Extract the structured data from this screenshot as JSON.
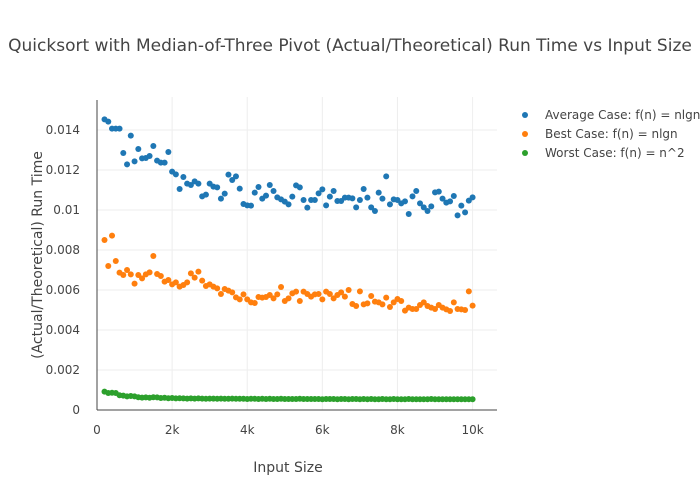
{
  "chart_data": {
    "type": "scatter",
    "title": "Quicksort with Median-of-Three Pivot (Actual/Theoretical) Run Time vs Input Size",
    "xlabel": "Input Size",
    "ylabel": "(Actual/Theoretical) Run Time",
    "xlim": [
      0,
      10650
    ],
    "ylim": [
      0,
      0.01565
    ],
    "x_start": 200,
    "x_step": 100,
    "x_ticks": [
      0,
      2000,
      4000,
      6000,
      8000,
      10000
    ],
    "x_tick_labels": [
      "0",
      "2k",
      "4k",
      "6k",
      "8k",
      "10k"
    ],
    "y_ticks": [
      0,
      0.002,
      0.004,
      0.006,
      0.008,
      0.01,
      0.012,
      0.014
    ],
    "y_tick_labels": [
      "0",
      "0.002",
      "0.004",
      "0.006",
      "0.008",
      "0.01",
      "0.012",
      "0.014"
    ],
    "grid": true,
    "legend_position": "top-right",
    "series": [
      {
        "name": "Average Case: f(n) = nlgn",
        "color": "#1f77b4",
        "values": [
          0.01453,
          0.01442,
          0.01407,
          0.01407,
          0.01407,
          0.01285,
          0.01228,
          0.01372,
          0.01243,
          0.01305,
          0.01258,
          0.0126,
          0.0127,
          0.0132,
          0.01247,
          0.01237,
          0.01237,
          0.0129,
          0.01192,
          0.01178,
          0.01105,
          0.01165,
          0.01132,
          0.01125,
          0.01143,
          0.01132,
          0.01068,
          0.01077,
          0.01132,
          0.01117,
          0.01113,
          0.01057,
          0.01082,
          0.01177,
          0.0115,
          0.01168,
          0.01107,
          0.0103,
          0.01023,
          0.01022,
          0.01087,
          0.01115,
          0.01057,
          0.01072,
          0.01125,
          0.01095,
          0.01063,
          0.01053,
          0.01042,
          0.01028,
          0.01067,
          0.01123,
          0.01113,
          0.0105,
          0.01012,
          0.0105,
          0.0105,
          0.01083,
          0.01103,
          0.01023,
          0.01067,
          0.01095,
          0.01045,
          0.01045,
          0.01062,
          0.01062,
          0.01058,
          0.01013,
          0.0105,
          0.01105,
          0.01062,
          0.01013,
          0.00995,
          0.01087,
          0.01057,
          0.01168,
          0.01028,
          0.01053,
          0.0105,
          0.01033,
          0.01043,
          0.0098,
          0.01068,
          0.01095,
          0.01033,
          0.01013,
          0.00995,
          0.01018,
          0.01088,
          0.01092,
          0.01057,
          0.01037,
          0.01043,
          0.0107,
          0.00973,
          0.01022,
          0.00988,
          0.01047,
          0.01063
        ]
      },
      {
        "name": "Best Case: f(n) = nlgn",
        "color": "#ff7f0e",
        "values": [
          0.0085,
          0.0072,
          0.00872,
          0.00745,
          0.00687,
          0.00675,
          0.007,
          0.00678,
          0.00632,
          0.00675,
          0.00658,
          0.00678,
          0.00688,
          0.0077,
          0.0068,
          0.0067,
          0.00642,
          0.0065,
          0.00628,
          0.00638,
          0.00617,
          0.00625,
          0.00638,
          0.00683,
          0.00662,
          0.00692,
          0.00647,
          0.0062,
          0.00628,
          0.00617,
          0.00608,
          0.0058,
          0.00605,
          0.00597,
          0.00588,
          0.00563,
          0.00553,
          0.00578,
          0.00553,
          0.00538,
          0.00535,
          0.00565,
          0.00562,
          0.00565,
          0.00575,
          0.00558,
          0.00578,
          0.00615,
          0.00545,
          0.00558,
          0.00583,
          0.00592,
          0.00545,
          0.00592,
          0.0058,
          0.00567,
          0.00578,
          0.0058,
          0.00553,
          0.00592,
          0.0058,
          0.00558,
          0.00575,
          0.00588,
          0.00567,
          0.006,
          0.0053,
          0.0052,
          0.00593,
          0.00528,
          0.00533,
          0.0057,
          0.00542,
          0.00538,
          0.00528,
          0.00562,
          0.00515,
          0.00538,
          0.00555,
          0.00545,
          0.00497,
          0.00512,
          0.00505,
          0.00505,
          0.00525,
          0.00538,
          0.0052,
          0.00512,
          0.00505,
          0.00525,
          0.00512,
          0.00503,
          0.00495,
          0.00538,
          0.00505,
          0.00503,
          0.005,
          0.00593,
          0.00522
        ]
      },
      {
        "name": "Worst Case: f(n) = n^2",
        "color": "#2ca02c",
        "values": [
          0.00092,
          0.00085,
          0.00086,
          0.00085,
          0.00074,
          0.00072,
          0.00068,
          0.0007,
          0.00068,
          0.00064,
          0.00062,
          0.00063,
          0.00061,
          0.00064,
          0.00063,
          0.0006,
          0.00061,
          0.00059,
          0.0006,
          0.00058,
          0.00059,
          0.00058,
          0.00057,
          0.00058,
          0.00057,
          0.00058,
          0.00057,
          0.00056,
          0.00057,
          0.00057,
          0.00056,
          0.00057,
          0.00056,
          0.00056,
          0.00057,
          0.00056,
          0.00056,
          0.00056,
          0.00055,
          0.00056,
          0.00056,
          0.00055,
          0.00056,
          0.00055,
          0.00056,
          0.00055,
          0.00055,
          0.00056,
          0.00055,
          0.00055,
          0.00055,
          0.00055,
          0.00056,
          0.00055,
          0.00055,
          0.00055,
          0.00055,
          0.00055,
          0.00054,
          0.00055,
          0.00055,
          0.00055,
          0.00054,
          0.00055,
          0.00055,
          0.00054,
          0.00055,
          0.00055,
          0.00054,
          0.00055,
          0.00054,
          0.00055,
          0.00054,
          0.00054,
          0.00055,
          0.00054,
          0.00054,
          0.00055,
          0.00054,
          0.00054,
          0.00054,
          0.00055,
          0.00054,
          0.00054,
          0.00054,
          0.00054,
          0.00054,
          0.00055,
          0.00054,
          0.00054,
          0.00054,
          0.00054,
          0.00054,
          0.00054,
          0.00054,
          0.00054,
          0.00054,
          0.00054,
          0.00054
        ]
      }
    ]
  }
}
